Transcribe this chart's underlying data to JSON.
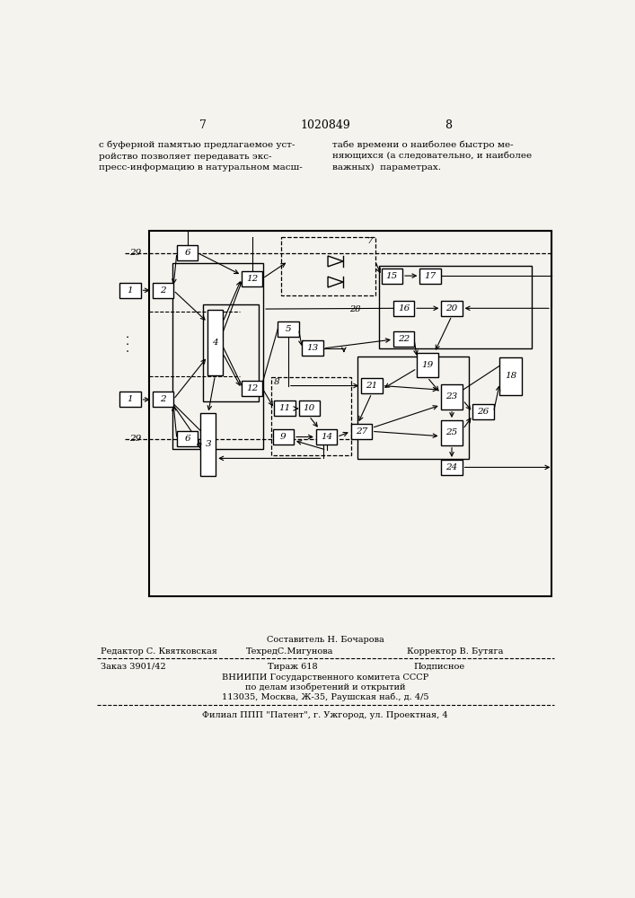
{
  "page_num_left": "7",
  "patent_num": "1020849",
  "page_num_right": "8",
  "text_left": "с буферной памятью предлагаемое уст-\nройство позволяет передавать экс-\nпресс-информацию в натуральном масш-",
  "text_right": "табе времени о наиболее быстро ме-\nняющихся (а следовательно, и наиболее\nважных)  параметрах.",
  "footer_line1_center": "Составитель Н. Бочарова",
  "footer_line2_left": "Редактор С. Квятковская",
  "footer_line2_center": "ТехредС.Мигунова",
  "footer_line2_right": "Корректор В. Бутяга",
  "footer_line3_left": "Заказ 3901/42",
  "footer_line3_center": "Тираж 618",
  "footer_line3_right": "Подписное",
  "footer_line4": "ВНИИПИ Государственного комитета СССР",
  "footer_line5": "по делам изобретений и открытий",
  "footer_line6": "113035, Москва, Ж-35, Раушская наб., д. 4/5",
  "footer_line7": "Филиал ППП \"Патент\", г. Ужгород, ул. Проектная, 4",
  "bg_color": "#f5f3ee"
}
